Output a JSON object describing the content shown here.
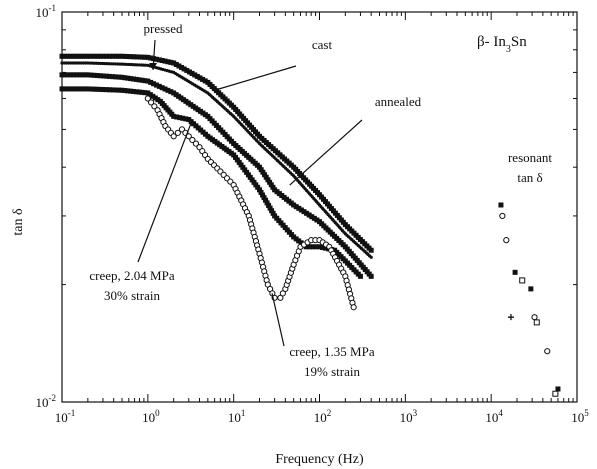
{
  "chart_data": {
    "type": "scatter",
    "title": "",
    "panel_label": {
      "prefix": "β- In",
      "sub": "3",
      "suffix": "Sn"
    },
    "xlabel": "Frequency (Hz)",
    "ylabel": "tan δ",
    "x_scale": "log",
    "y_scale": "log",
    "xlim": [
      0.1,
      100000
    ],
    "ylim": [
      0.01,
      0.1
    ],
    "grid": false,
    "x_ticks": [
      {
        "value": 0.1,
        "base": "10",
        "exp": "-1"
      },
      {
        "value": 1,
        "base": "10",
        "exp": "0"
      },
      {
        "value": 10,
        "base": "10",
        "exp": "1"
      },
      {
        "value": 100,
        "base": "10",
        "exp": "2"
      },
      {
        "value": 1000,
        "base": "10",
        "exp": "3"
      },
      {
        "value": 10000,
        "base": "10",
        "exp": "4"
      },
      {
        "value": 100000,
        "base": "10",
        "exp": "5"
      }
    ],
    "y_ticks": [
      {
        "value": 0.01,
        "base": "10",
        "exp": "-2"
      },
      {
        "value": 0.1,
        "base": "10",
        "exp": "-1"
      }
    ],
    "series": [
      {
        "marker": "filled-square",
        "label_ref": "cast",
        "x": [
          0.1,
          0.2,
          0.5,
          1,
          2,
          5,
          10,
          20,
          50,
          100,
          200,
          400
        ],
        "y": [
          0.077,
          0.077,
          0.077,
          0.0765,
          0.074,
          0.066,
          0.057,
          0.048,
          0.04,
          0.034,
          0.0285,
          0.0245
        ]
      },
      {
        "marker": "small-dot",
        "label_ref": "annealed",
        "x": [
          0.1,
          0.2,
          0.5,
          1,
          2,
          5,
          10,
          20,
          50,
          100,
          200,
          400
        ],
        "y": [
          0.074,
          0.074,
          0.0735,
          0.073,
          0.07,
          0.062,
          0.054,
          0.046,
          0.038,
          0.032,
          0.027,
          0.0235
        ]
      },
      {
        "marker": "filled-square",
        "label_ref": "pressed",
        "x": [
          0.1,
          0.2,
          0.5,
          1,
          2,
          5,
          10,
          20,
          30,
          50,
          100,
          200,
          400
        ],
        "y": [
          0.069,
          0.069,
          0.068,
          0.0665,
          0.062,
          0.054,
          0.046,
          0.04,
          0.035,
          0.032,
          0.029,
          0.025,
          0.021
        ]
      },
      {
        "marker": "filled-square",
        "label_ref": "creep, 2.04 MPa 30% strain",
        "x": [
          0.1,
          0.2,
          0.5,
          1,
          1.4,
          2,
          3,
          5,
          10,
          20,
          30,
          50,
          70,
          100,
          150,
          200,
          300
        ],
        "y": [
          0.0635,
          0.0635,
          0.063,
          0.062,
          0.059,
          0.054,
          0.053,
          0.048,
          0.043,
          0.035,
          0.03,
          0.0265,
          0.025,
          0.025,
          0.0245,
          0.023,
          0.021
        ]
      },
      {
        "marker": "open-circle",
        "label_ref": "creep, 1.35 MPa 19% strain",
        "x": [
          1,
          1.3,
          1.6,
          2,
          2.5,
          3,
          4,
          5,
          7,
          10,
          15,
          20,
          25,
          30,
          35,
          40,
          50,
          60,
          80,
          100,
          130,
          160,
          200,
          250
        ],
        "y": [
          0.06,
          0.056,
          0.051,
          0.048,
          0.05,
          0.048,
          0.045,
          0.042,
          0.039,
          0.036,
          0.03,
          0.024,
          0.02,
          0.0185,
          0.0185,
          0.0195,
          0.0225,
          0.025,
          0.026,
          0.026,
          0.025,
          0.023,
          0.021,
          0.0175
        ]
      },
      {
        "marker": "open-circle",
        "label_ref": "resonant",
        "x": [
          13500,
          15000,
          32000,
          45000
        ],
        "y": [
          0.03,
          0.026,
          0.0165,
          0.0135
        ]
      },
      {
        "marker": "filled-square",
        "label_ref": "resonant",
        "x": [
          13000,
          19000,
          29000,
          60000
        ],
        "y": [
          0.032,
          0.0215,
          0.0195,
          0.0108
        ]
      },
      {
        "marker": "open-square",
        "label_ref": "resonant",
        "x": [
          23000,
          34000,
          56000
        ],
        "y": [
          0.0205,
          0.016,
          0.0105
        ]
      },
      {
        "marker": "cross",
        "label_ref": "resonant",
        "x": [
          17000
        ],
        "y": [
          0.0165
        ]
      }
    ],
    "annotations": [
      {
        "name": "pressed",
        "lines": [
          "pressed"
        ],
        "target": [
          1.15,
          0.071
        ]
      },
      {
        "name": "cast",
        "lines": [
          "cast"
        ],
        "target": [
          6,
          0.063
        ]
      },
      {
        "name": "annealed",
        "lines": [
          "annealed"
        ],
        "target": [
          45,
          0.036
        ]
      },
      {
        "name": "resonant",
        "lines": [
          "resonant",
          "tan δ"
        ]
      },
      {
        "name": "creep-204",
        "lines": [
          "creep, 2.04 MPa",
          "30% strain"
        ],
        "target": [
          3.2,
          0.052
        ]
      },
      {
        "name": "creep-135",
        "lines": [
          "creep, 1.35 MPa",
          "19% strain"
        ],
        "target": [
          28,
          0.019
        ]
      }
    ]
  }
}
